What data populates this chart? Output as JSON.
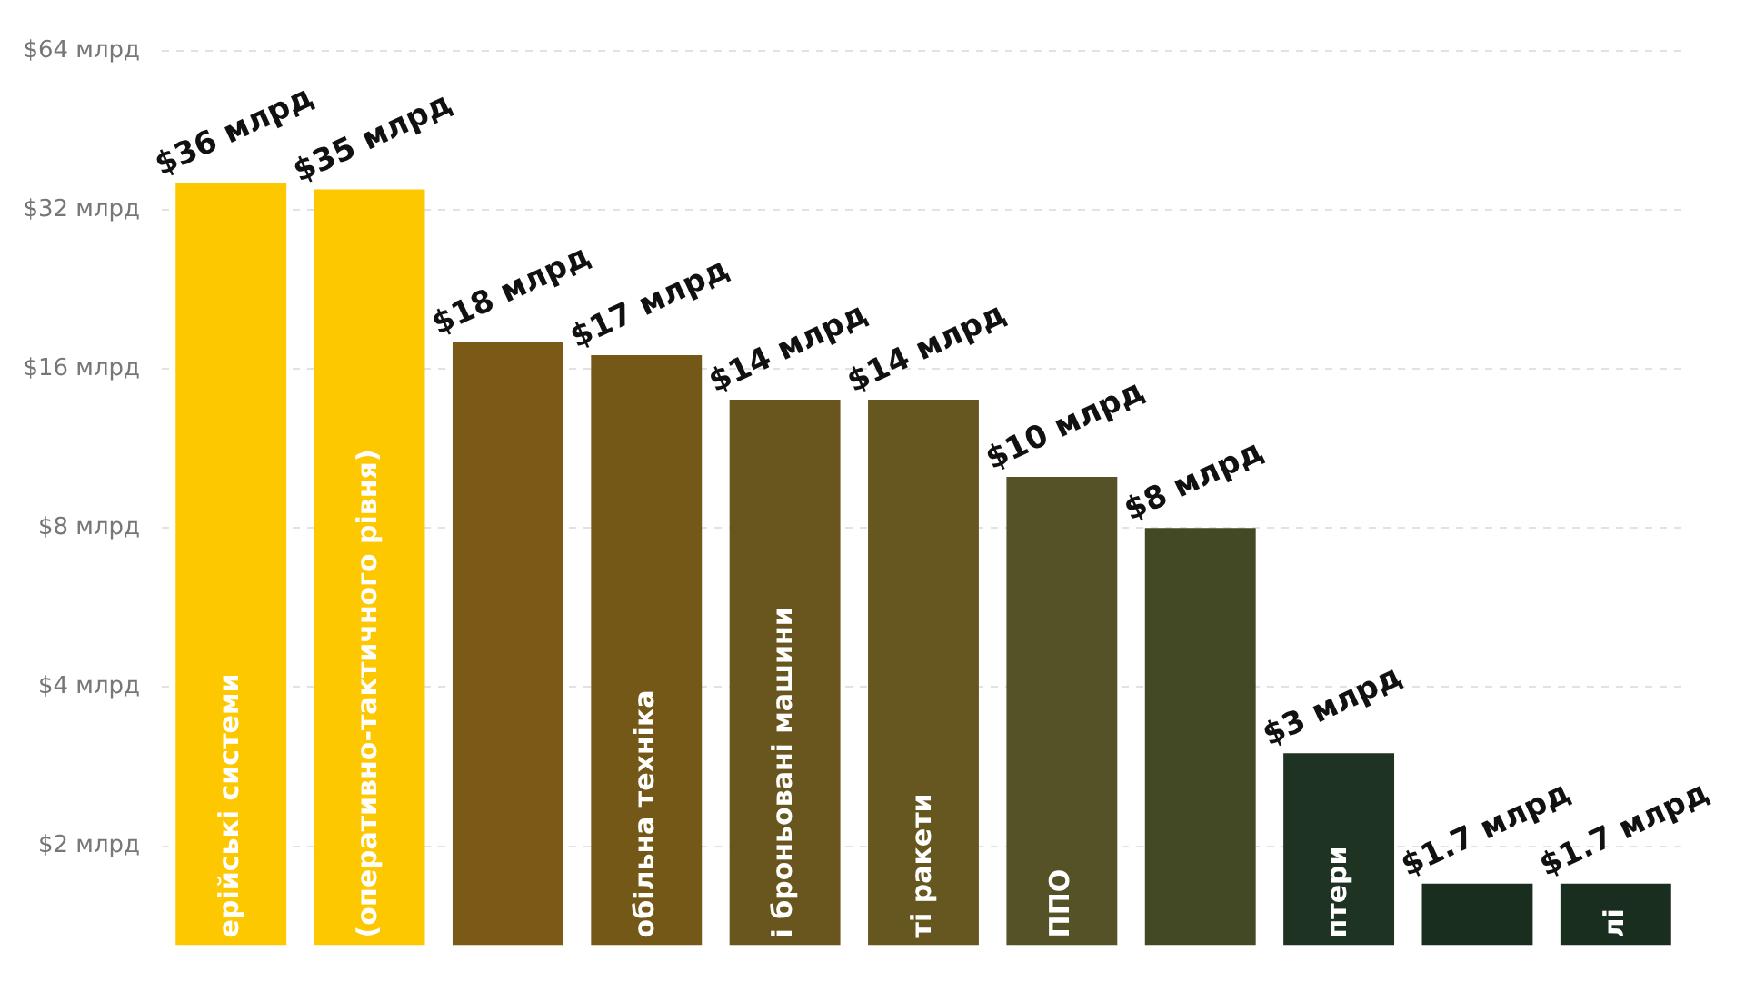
{
  "chart_data": {
    "type": "bar",
    "categories": [
      "ерійські системи",
      "(оперативно-тактичного рівня)",
      null,
      "обільна техніка",
      "і броньовані машини",
      "ті ракети",
      "ППО",
      null,
      "птери",
      null,
      "лі"
    ],
    "values": [
      36,
      35,
      18,
      17,
      14,
      14,
      10,
      8,
      3,
      1.7,
      1.7
    ],
    "value_labels": [
      "$36 млрд",
      "$35 млрд",
      "$18 млрд",
      "$17 млрд",
      "$14 млрд",
      "$14 млрд",
      "$10 млрд",
      "$8 млрд",
      "$3 млрд",
      "$1.7 млрд",
      "$1.7 млрд"
    ],
    "colors": [
      "#fdc800",
      "#fdc800",
      "#7a5a16",
      "#735818",
      "#68561e",
      "#665720",
      "#545226",
      "#434924",
      "#1f3322",
      "#1a2e20",
      "#1a2e20"
    ],
    "log": "y",
    "ylim": [
      1.3,
      64
    ],
    "yticks": [
      {
        "value": 2,
        "label": "$2 млрд"
      },
      {
        "value": 4,
        "label": "$4 млрд"
      },
      {
        "value": 8,
        "label": "$8 млрд"
      },
      {
        "value": 16,
        "label": "$16 млрд"
      },
      {
        "value": 32,
        "label": "$32 млрд"
      },
      {
        "value": 64,
        "label": "$64 млрд"
      }
    ],
    "grid": "y"
  }
}
